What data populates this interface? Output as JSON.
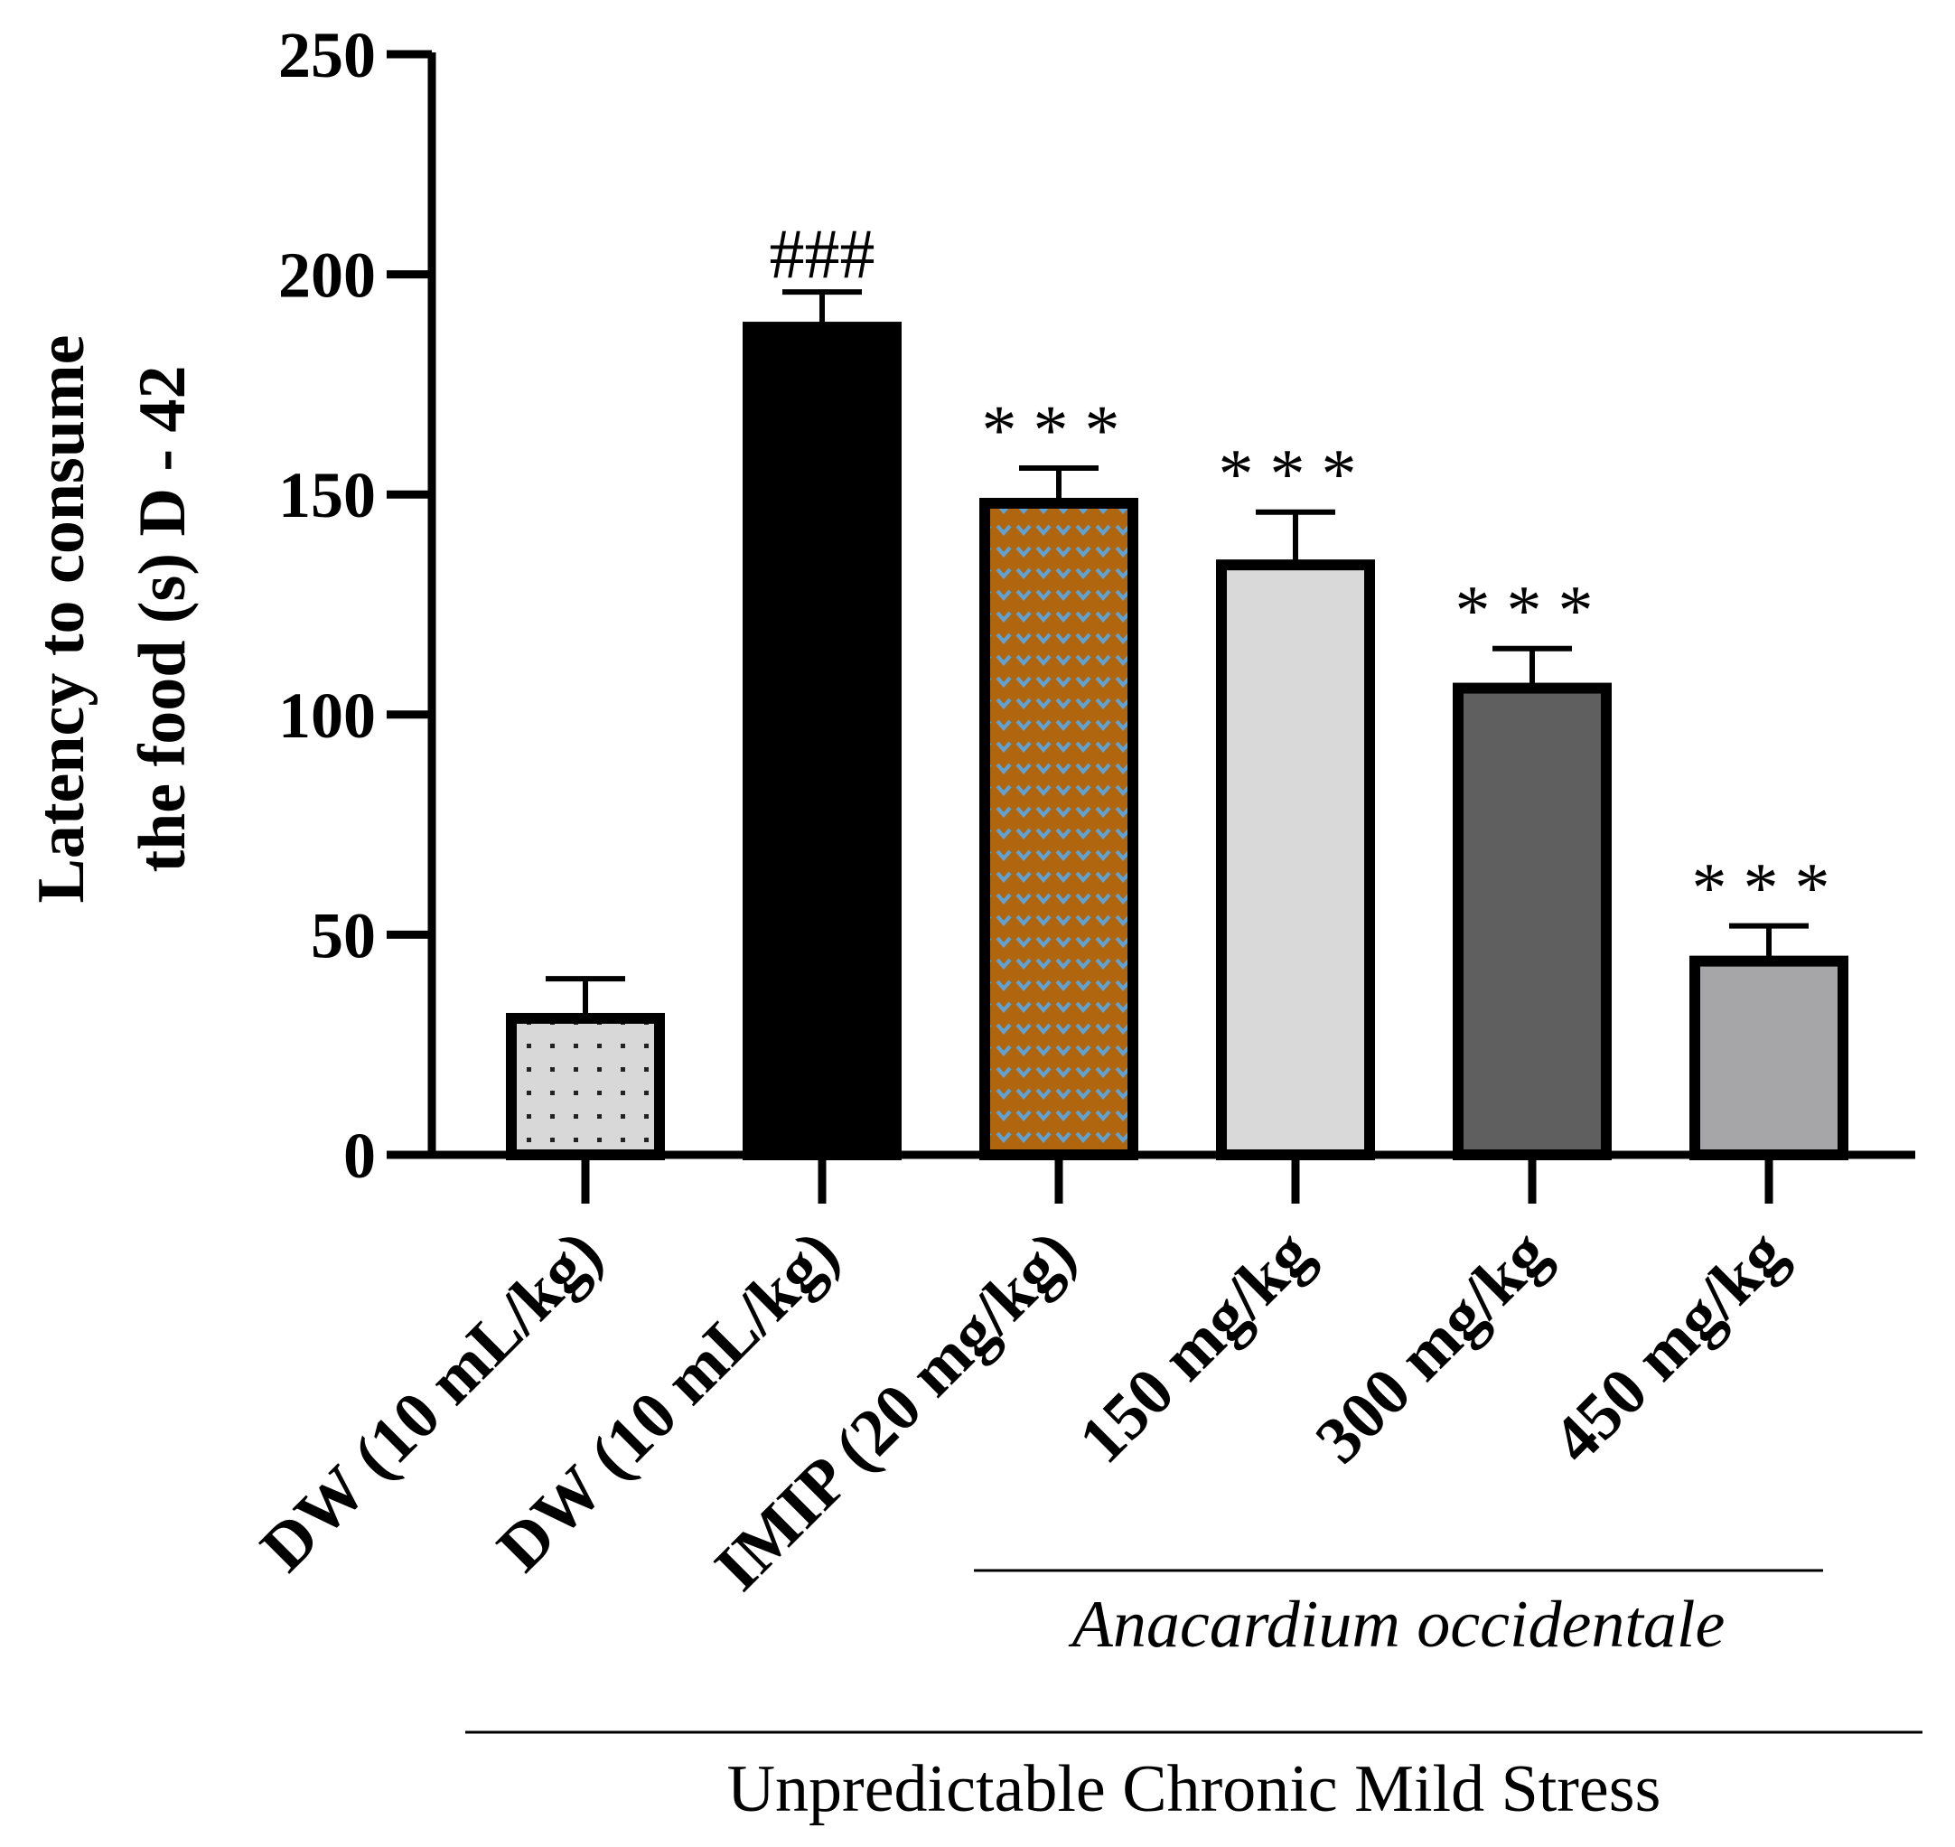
{
  "chart_data": {
    "type": "bar",
    "title": "",
    "xlabel": "",
    "ylabel_lines": [
      "Latency to consume",
      "the food (s) D - 42"
    ],
    "ylim": [
      0,
      250
    ],
    "yticks": [
      0,
      50,
      100,
      150,
      200,
      250
    ],
    "categories": [
      "DW (10 mL/kg)",
      "DW (10 mL/kg)",
      "IMIP (20 mg/kg)",
      "150 mg/kg",
      "300 mg/kg",
      "450 mg/kg"
    ],
    "values": [
      31,
      188,
      148,
      134,
      106,
      44
    ],
    "errors": [
      9,
      8,
      8,
      12,
      9,
      8
    ],
    "annotations": [
      "",
      "###",
      "***",
      "***",
      "***",
      "***"
    ],
    "fills": [
      "dots-gray",
      "#000000",
      "pattern-brown-blue",
      "#d9d9d9",
      "#5f5f5f",
      "#a6a6a8"
    ],
    "groups": [
      {
        "label": "Anacardium occidentale",
        "italic": true,
        "from_category": 3,
        "to_category": 5
      },
      {
        "label": "Unpredictable Chronic Mild Stress",
        "italic": false,
        "from_category": 1,
        "to_category": 5
      }
    ]
  }
}
